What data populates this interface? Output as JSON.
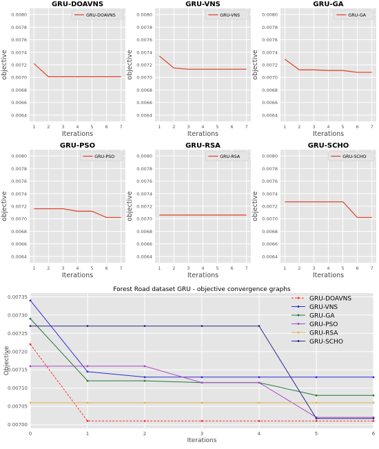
{
  "chart_data": [
    {
      "type": "line",
      "title": "GRU-DOAVNS",
      "xlabel": "Iterations",
      "ylabel": "objective",
      "x": [
        1,
        2,
        3,
        4,
        5,
        6,
        7
      ],
      "ylim": [
        0.0063,
        0.0081
      ],
      "yticks": [
        "0.0064",
        "0.0066",
        "0.0068",
        "0.0070",
        "0.0072",
        "0.0074",
        "0.0076",
        "0.0078",
        "0.0080"
      ],
      "grid": true,
      "legend": "top-right",
      "series": [
        {
          "name": "GRU-DOAVNS",
          "color": "#e24a33",
          "values": [
            0.00722,
            0.00701,
            0.00701,
            0.00701,
            0.00701,
            0.00701,
            0.00701
          ]
        }
      ]
    },
    {
      "type": "line",
      "title": "GRU-VNS",
      "xlabel": "Iterations",
      "ylabel": "objective",
      "x": [
        1,
        2,
        3,
        4,
        5,
        6,
        7
      ],
      "ylim": [
        0.0063,
        0.0081
      ],
      "yticks": [
        "0.0064",
        "0.0066",
        "0.0068",
        "0.0070",
        "0.0072",
        "0.0074",
        "0.0076",
        "0.0078",
        "0.0080"
      ],
      "grid": true,
      "legend": "top-right",
      "series": [
        {
          "name": "GRU-VNS",
          "color": "#e24a33",
          "values": [
            0.00734,
            0.00715,
            0.00713,
            0.00713,
            0.00713,
            0.00713,
            0.00713
          ]
        }
      ]
    },
    {
      "type": "line",
      "title": "GRU-GA",
      "xlabel": "Iterations",
      "ylabel": "objective",
      "x": [
        1,
        2,
        3,
        4,
        5,
        6,
        7
      ],
      "ylim": [
        0.0063,
        0.0081
      ],
      "yticks": [
        "0.0064",
        "0.0066",
        "0.0068",
        "0.0070",
        "0.0072",
        "0.0074",
        "0.0076",
        "0.0078",
        "0.0080"
      ],
      "grid": true,
      "legend": "top-right",
      "series": [
        {
          "name": "GRU-GA",
          "color": "#e24a33",
          "values": [
            0.00729,
            0.00712,
            0.00712,
            0.00711,
            0.00711,
            0.00708,
            0.00708
          ]
        }
      ]
    },
    {
      "type": "line",
      "title": "GRU-PSO",
      "xlabel": "Iterations",
      "ylabel": "objective",
      "x": [
        1,
        2,
        3,
        4,
        5,
        6,
        7
      ],
      "ylim": [
        0.0063,
        0.0081
      ],
      "yticks": [
        "0.0064",
        "0.0066",
        "0.0068",
        "0.0070",
        "0.0072",
        "0.0074",
        "0.0076",
        "0.0078",
        "0.0080"
      ],
      "grid": true,
      "legend": "top-right",
      "series": [
        {
          "name": "GRU-PSO",
          "color": "#e24a33",
          "values": [
            0.00716,
            0.00716,
            0.00716,
            0.00712,
            0.00712,
            0.00702,
            0.00702
          ]
        }
      ]
    },
    {
      "type": "line",
      "title": "GRU-RSA",
      "xlabel": "Iterations",
      "ylabel": "objective",
      "x": [
        1,
        2,
        3,
        4,
        5,
        6,
        7
      ],
      "ylim": [
        0.0063,
        0.0081
      ],
      "yticks": [
        "0.0064",
        "0.0066",
        "0.0068",
        "0.0070",
        "0.0072",
        "0.0074",
        "0.0076",
        "0.0078",
        "0.0080"
      ],
      "grid": true,
      "legend": "top-right",
      "series": [
        {
          "name": "GRU-RSA",
          "color": "#e24a33",
          "values": [
            0.00706,
            0.00706,
            0.00706,
            0.00706,
            0.00706,
            0.00706,
            0.00706
          ]
        }
      ]
    },
    {
      "type": "line",
      "title": "GRU-SCHO",
      "xlabel": "Iterations",
      "ylabel": "objective",
      "x": [
        1,
        2,
        3,
        4,
        5,
        6,
        7
      ],
      "ylim": [
        0.0063,
        0.0081
      ],
      "yticks": [
        "0.0064",
        "0.0066",
        "0.0068",
        "0.0070",
        "0.0072",
        "0.0074",
        "0.0076",
        "0.0078",
        "0.0080"
      ],
      "grid": true,
      "legend": "top-right",
      "series": [
        {
          "name": "GRU-SCHO",
          "color": "#e24a33",
          "values": [
            0.00727,
            0.00727,
            0.00727,
            0.00727,
            0.00727,
            0.00702,
            0.00702
          ]
        }
      ]
    },
    {
      "type": "line",
      "title": "Forest Road dataset GRU -  objective convergence graphs",
      "xlabel": "Iterations",
      "ylabel": "Objective",
      "x": [
        0,
        1,
        2,
        3,
        4,
        5,
        6
      ],
      "xticks": [
        "0",
        "1",
        "2",
        "3",
        "4",
        "5",
        "6"
      ],
      "ylim": [
        0.00699,
        0.00736
      ],
      "yticks": [
        "0.00700",
        "0.00705",
        "0.00710",
        "0.00715",
        "0.00720",
        "0.00725",
        "0.00730",
        "0.00735"
      ],
      "grid": true,
      "legend": "top-right",
      "series": [
        {
          "name": "GRU-DOAVNS",
          "color": "#ff2b2b",
          "dashed": true,
          "values": [
            0.00722,
            0.00701,
            0.00701,
            0.00701,
            0.00701,
            0.00701,
            0.00701
          ]
        },
        {
          "name": "GRU-VNS",
          "color": "#2b2bd9",
          "values": [
            0.00734,
            0.007145,
            0.00713,
            0.00713,
            0.00713,
            0.00713,
            0.00713
          ]
        },
        {
          "name": "GRU-GA",
          "color": "#1f7a3a",
          "values": [
            0.00729,
            0.00712,
            0.00712,
            0.007115,
            0.007115,
            0.00708,
            0.00708
          ]
        },
        {
          "name": "GRU-PSO",
          "color": "#a64ac9",
          "values": [
            0.00716,
            0.00716,
            0.00716,
            0.007115,
            0.007115,
            0.00702,
            0.00702
          ]
        },
        {
          "name": "GRU-RSA",
          "color": "#e3b44a",
          "values": [
            0.00706,
            0.00706,
            0.00706,
            0.00706,
            0.00706,
            0.00706,
            0.00706
          ]
        },
        {
          "name": "GRU-SCHO",
          "color": "#2b2b8c",
          "values": [
            0.00727,
            0.00727,
            0.00727,
            0.00727,
            0.00727,
            0.007017,
            0.007017
          ]
        }
      ]
    }
  ]
}
